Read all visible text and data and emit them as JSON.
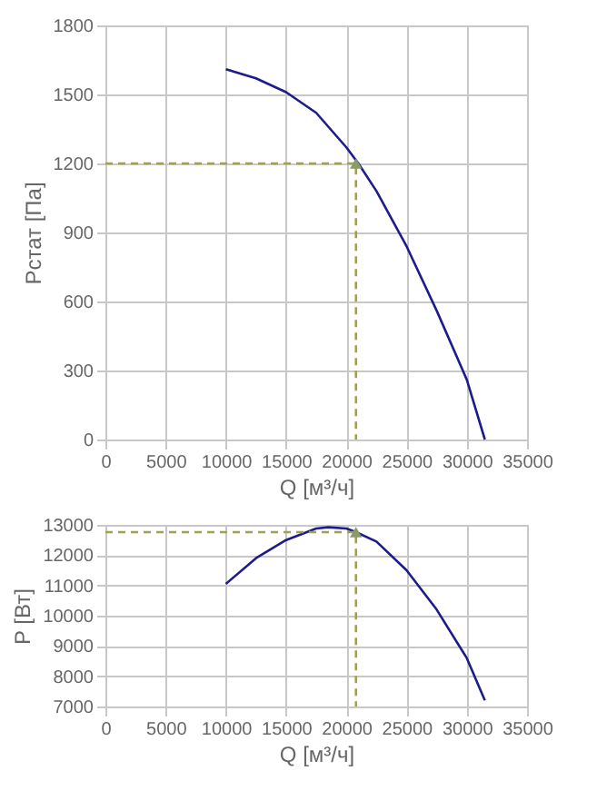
{
  "chart_data": [
    {
      "type": "line",
      "xlabel": "Q [м³/ч]",
      "ylabel": "Pстат [Па]",
      "xlim": [
        0,
        35000
      ],
      "ylim": [
        0,
        1800
      ],
      "xticks": [
        0,
        5000,
        10000,
        15000,
        20000,
        25000,
        30000,
        35000
      ],
      "yticks": [
        0,
        300,
        600,
        900,
        1200,
        1500,
        1800
      ],
      "grid": true,
      "series": [
        {
          "color": "#1c1c8c",
          "x": [
            10000,
            12500,
            15000,
            17500,
            20000,
            21000,
            22500,
            25000,
            27500,
            30000,
            31500
          ],
          "values": [
            1610,
            1570,
            1510,
            1420,
            1270,
            1200,
            1080,
            840,
            560,
            260,
            0
          ]
        },
        {
          "color": "#a0a050",
          "type": "line",
          "line_style": "dashed",
          "x": [
            0,
            20800,
            20800
          ],
          "values": [
            1200,
            1200,
            0
          ]
        },
        {
          "color": "#8a9a6a",
          "type": "scatter",
          "marker": "triangle",
          "x": [
            20800
          ],
          "values": [
            1200
          ]
        }
      ]
    },
    {
      "type": "line",
      "xlabel": "Q [м³/ч]",
      "ylabel": "P [Вт]",
      "xlim": [
        0,
        35000
      ],
      "ylim": [
        7000,
        13000
      ],
      "xticks": [
        0,
        5000,
        10000,
        15000,
        20000,
        25000,
        30000,
        35000
      ],
      "yticks": [
        7000,
        8000,
        9000,
        10000,
        11000,
        12000,
        13000
      ],
      "grid": true,
      "series": [
        {
          "color": "#1c1c8c",
          "x": [
            10000,
            12500,
            15000,
            17500,
            18500,
            20000,
            20800,
            22500,
            25000,
            27500,
            30000,
            31500
          ],
          "values": [
            11050,
            11900,
            12500,
            12880,
            12920,
            12880,
            12760,
            12450,
            11500,
            10200,
            8600,
            7200
          ]
        },
        {
          "color": "#a0a050",
          "type": "line",
          "line_style": "dashed",
          "x": [
            0,
            20800,
            20800
          ],
          "values": [
            12760,
            12760,
            7000
          ]
        },
        {
          "color": "#8a9a6a",
          "type": "scatter",
          "marker": "triangle",
          "x": [
            20800
          ],
          "values": [
            12760
          ]
        }
      ]
    }
  ]
}
